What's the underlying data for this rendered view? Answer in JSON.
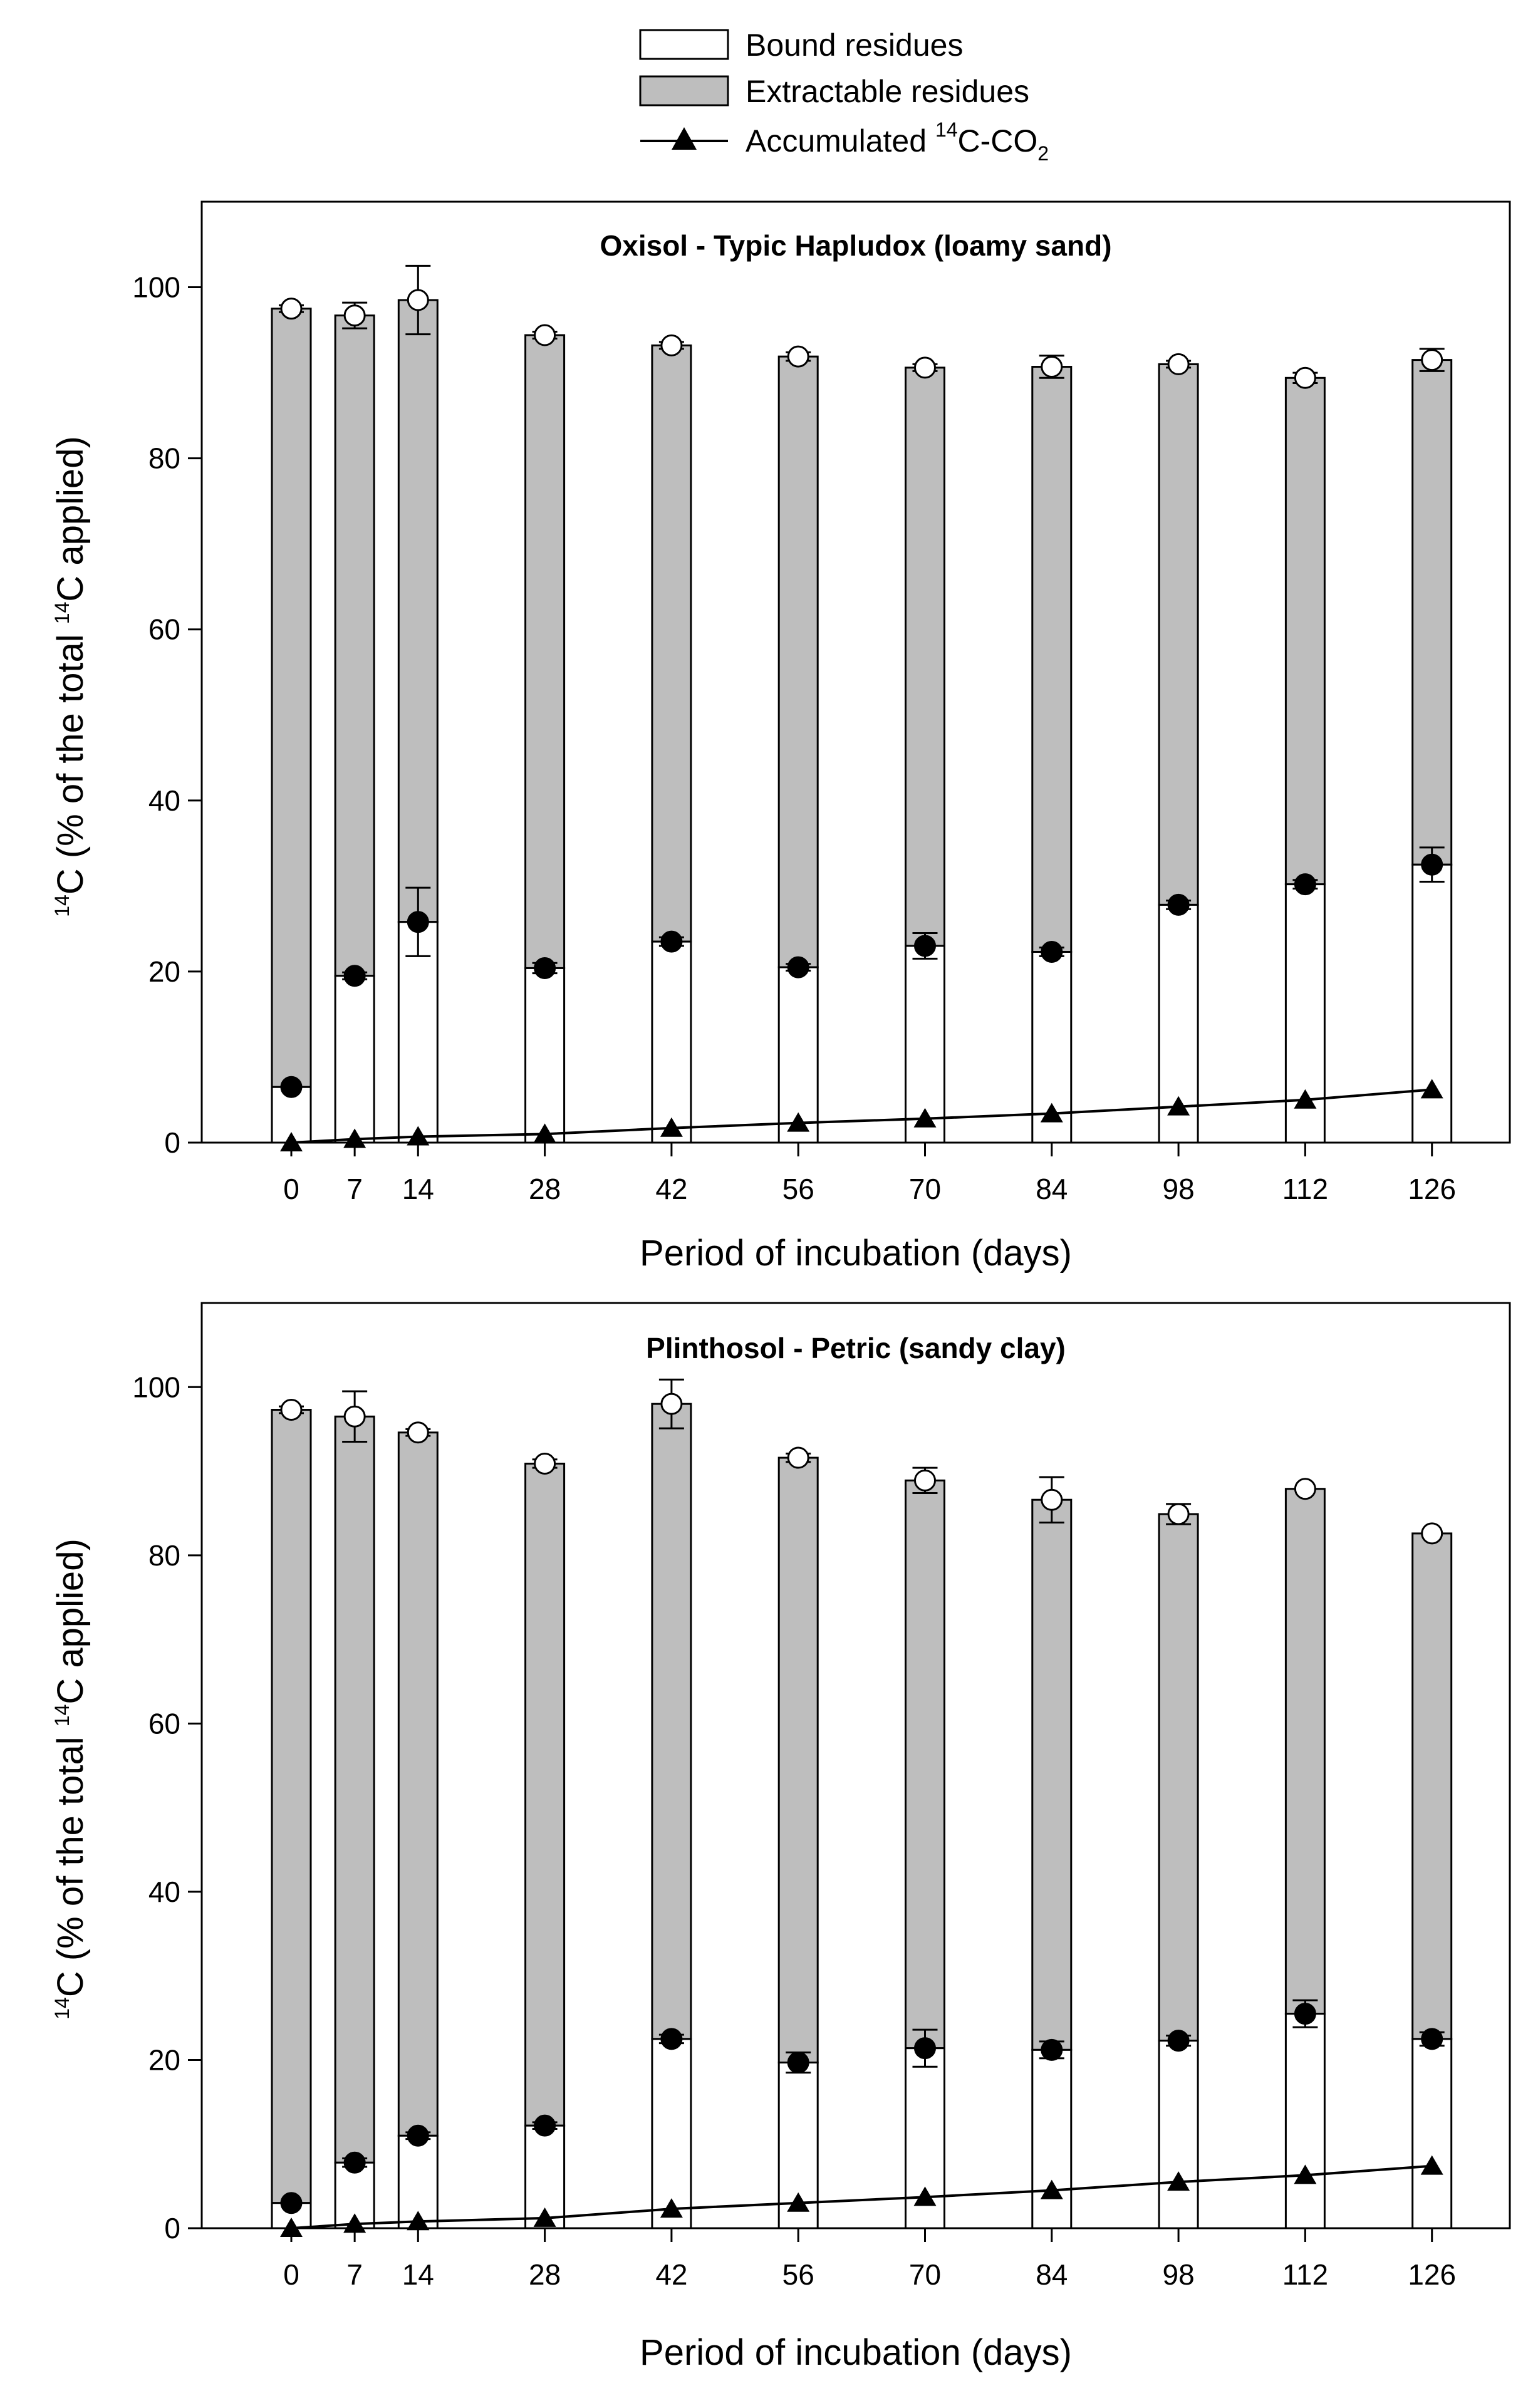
{
  "legend": {
    "bound_label": "Bound residues",
    "extractable_label": "Extractable residues",
    "co2_label_pre": "Accumulated ",
    "co2_label_sup": "14",
    "co2_label_mid": "C-CO",
    "co2_label_sub": "2"
  },
  "colors": {
    "extractable_fill": "#bebebe",
    "bound_fill": "#ffffff",
    "line": "#000000"
  },
  "chart_data": [
    {
      "type": "bar",
      "title": "Oxisol - Typic Hapludox (loamy sand)",
      "xlabel": "Period of incubation (days)",
      "ylabel": {
        "sup": "14",
        "pre": "C (% of the total ",
        "sup2": "14",
        "post": "C applied)"
      },
      "x": [
        0,
        7,
        14,
        28,
        42,
        56,
        70,
        84,
        98,
        112,
        126
      ],
      "x_tick_labels": [
        "0",
        "7",
        "14",
        "28",
        "42",
        "56",
        "70",
        "84",
        "98",
        "112",
        "126"
      ],
      "y_ticks": [
        "0",
        "20",
        "40",
        "60",
        "80",
        "100"
      ],
      "ylim": [
        0,
        110
      ],
      "series": [
        {
          "name": "Bound residues",
          "values": [
            6.5,
            19.5,
            25.8,
            20.4,
            23.5,
            20.5,
            23.0,
            22.3,
            27.8,
            30.2,
            32.5
          ],
          "errors": [
            0.3,
            0.4,
            4.0,
            0.6,
            0.5,
            0.4,
            1.5,
            0.5,
            0.5,
            0.5,
            2.0
          ]
        },
        {
          "name": "Extractable residues (total height)",
          "values": [
            97.5,
            96.7,
            98.5,
            94.4,
            93.2,
            91.9,
            90.6,
            90.7,
            91.0,
            89.4,
            91.5
          ],
          "errors": [
            0.4,
            1.5,
            4.0,
            0.4,
            0.4,
            0.5,
            0.4,
            1.3,
            0.4,
            0.6,
            1.3
          ]
        },
        {
          "name": "Accumulated 14C-CO2",
          "values": [
            0.0,
            0.4,
            0.7,
            1.0,
            1.7,
            2.3,
            2.8,
            3.4,
            4.2,
            5.0,
            6.2
          ]
        }
      ]
    },
    {
      "type": "bar",
      "title": "Plinthosol - Petric (sandy clay)",
      "xlabel": "Period of incubation (days)",
      "ylabel": {
        "sup": "14",
        "pre": "C (% of the total ",
        "sup2": "14",
        "post": "C applied)"
      },
      "x": [
        0,
        7,
        14,
        28,
        42,
        56,
        70,
        84,
        98,
        112,
        126
      ],
      "x_tick_labels": [
        "0",
        "7",
        "14",
        "28",
        "42",
        "56",
        "70",
        "84",
        "98",
        "112",
        "126"
      ],
      "y_ticks": [
        "0",
        "20",
        "40",
        "60",
        "80",
        "100"
      ],
      "ylim": [
        0,
        110
      ],
      "series": [
        {
          "name": "Bound residues",
          "values": [
            3.0,
            7.8,
            11.0,
            12.2,
            22.5,
            19.7,
            21.4,
            21.2,
            22.3,
            25.5,
            22.5
          ],
          "errors": [
            0.3,
            0.5,
            0.4,
            0.4,
            0.5,
            1.2,
            2.2,
            1.0,
            0.6,
            1.6,
            0.8
          ]
        },
        {
          "name": "Extractable residues (total height)",
          "values": [
            97.3,
            96.5,
            94.6,
            90.9,
            98.0,
            91.6,
            88.9,
            86.6,
            84.9,
            87.9,
            82.6
          ],
          "errors": [
            0.4,
            3.0,
            0.4,
            0.5,
            2.9,
            0.5,
            1.5,
            2.7,
            1.2,
            0.3,
            0.3
          ]
        },
        {
          "name": "Accumulated 14C-CO2",
          "values": [
            0.0,
            0.5,
            0.8,
            1.2,
            2.3,
            3.0,
            3.7,
            4.5,
            5.5,
            6.3,
            7.4
          ]
        }
      ]
    }
  ]
}
